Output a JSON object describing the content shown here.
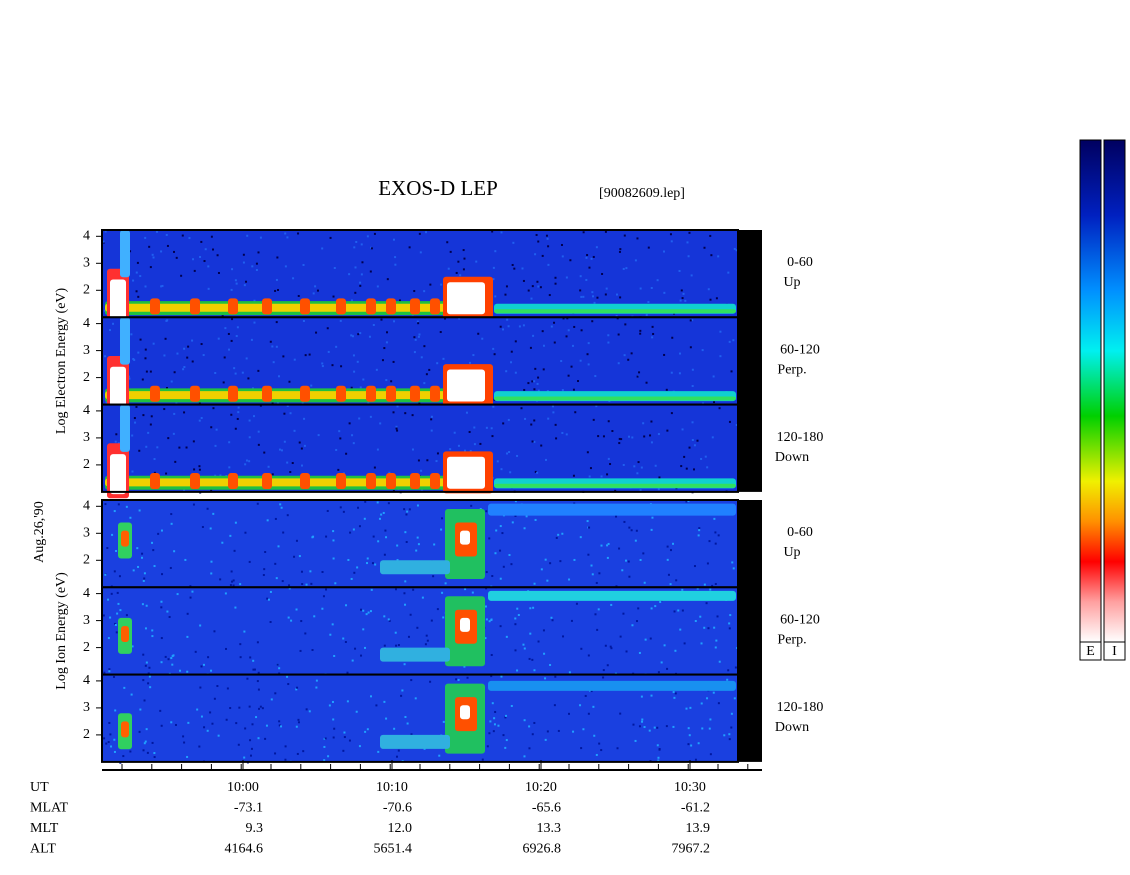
{
  "title": "EXOS-D LEP",
  "file": "[90082609.lep]",
  "date": "Aug.26,'90",
  "yticks": [
    "2",
    "3",
    "4"
  ],
  "groups": [
    {
      "label": "Log Electron Energy (eV)",
      "panels": [
        {
          "angle": "0-60",
          "direction": "Up"
        },
        {
          "angle": "60-120",
          "direction": "Perp."
        },
        {
          "angle": "120-180",
          "direction": "Down"
        }
      ]
    },
    {
      "label": "Log Ion Energy (eV)",
      "panels": [
        {
          "angle": "0-60",
          "direction": "Up"
        },
        {
          "angle": "60-120",
          "direction": "Perp."
        },
        {
          "angle": "120-180",
          "direction": "Down"
        }
      ]
    }
  ],
  "time_axis": {
    "ticks": [
      "10:00",
      "10:10",
      "10:20",
      "10:30"
    ],
    "rows": [
      {
        "name": "UT",
        "values": []
      },
      {
        "name": "MLAT",
        "values": [
          "-73.1",
          "-70.6",
          "-65.6",
          "-61.2"
        ]
      },
      {
        "name": "MLT",
        "values": [
          "9.3",
          "12.0",
          "13.3",
          "13.9"
        ]
      },
      {
        "name": "ALT",
        "values": [
          "4164.6",
          "5651.4",
          "6926.8",
          "7967.2"
        ]
      }
    ]
  },
  "colorbars": [
    "E",
    "I"
  ]
}
